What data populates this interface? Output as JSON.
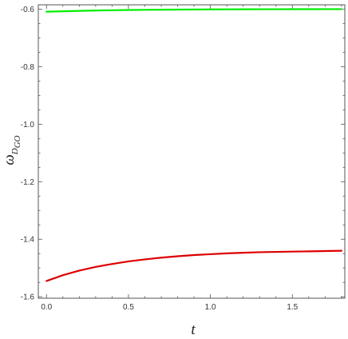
{
  "chart_data": {
    "type": "line",
    "title": "",
    "xlabel": "t",
    "ylabel": "ω",
    "ylabel_subscript": "D",
    "ylabel_subsubscript": "GO",
    "xlim": [
      -0.05,
      1.82
    ],
    "ylim": [
      -1.605,
      -0.585
    ],
    "x_ticks": [
      0.0,
      0.5,
      1.0,
      1.5
    ],
    "x_tick_labels": [
      "0.0",
      "0.5",
      "1.0",
      "1.5"
    ],
    "y_ticks": [
      -0.6,
      -0.8,
      -1.0,
      -1.2,
      -1.4,
      -1.6
    ],
    "y_tick_labels": [
      "-0.6",
      "-0.8",
      "-1.0",
      "-1.2",
      "-1.4",
      "-1.6"
    ],
    "grid": false,
    "frame": "box",
    "series": [
      {
        "color": "#00ee00",
        "x": [
          0.0,
          0.1,
          0.2,
          0.3,
          0.4,
          0.5,
          0.6,
          0.7,
          0.8,
          0.9,
          1.0,
          1.1,
          1.2,
          1.3,
          1.4,
          1.5,
          1.6,
          1.7,
          1.8
        ],
        "y": [
          -0.609,
          -0.6075,
          -0.6061,
          -0.6049,
          -0.6039,
          -0.6031,
          -0.6025,
          -0.602,
          -0.6016,
          -0.6013,
          -0.601,
          -0.6008,
          -0.6006,
          -0.6005,
          -0.6004,
          -0.6003,
          -0.6002,
          -0.6001,
          -0.6001
        ]
      },
      {
        "color": "#dd0000",
        "x": [
          0.0,
          0.1,
          0.2,
          0.3,
          0.4,
          0.5,
          0.6,
          0.7,
          0.8,
          0.9,
          1.0,
          1.1,
          1.2,
          1.3,
          1.4,
          1.5,
          1.6,
          1.7,
          1.8
        ],
        "y": [
          -1.545,
          -1.525,
          -1.509,
          -1.496,
          -1.486,
          -1.477,
          -1.47,
          -1.464,
          -1.459,
          -1.455,
          -1.452,
          -1.449,
          -1.447,
          -1.445,
          -1.444,
          -1.443,
          -1.442,
          -1.441,
          -1.44
        ]
      }
    ]
  }
}
